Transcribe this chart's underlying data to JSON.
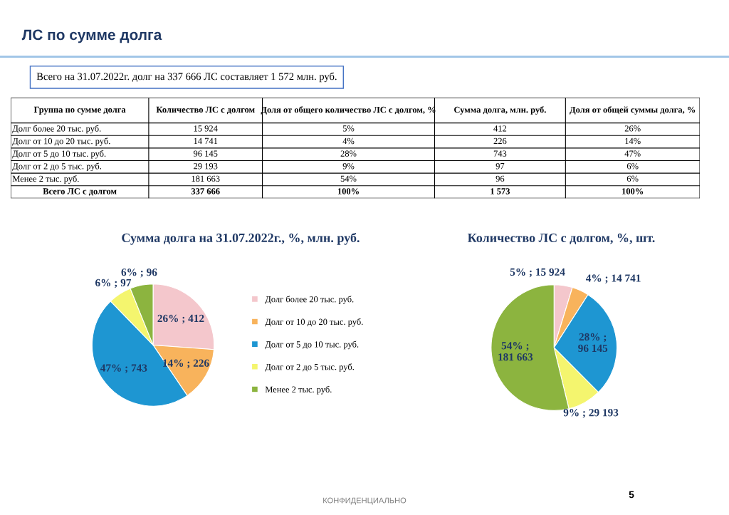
{
  "chart_data": [
    {
      "type": "other",
      "title": "ЛС по сумме долга",
      "subtitle": "Всего на 31.07.2022г. долг на 337 666 ЛС составляет 1 572 млн. руб.",
      "categories": [
        "Группа по сумме долга",
        "Количество ЛС с долгом",
        "Доля от общего количество ЛС с долгом, %",
        "Сумма долга, млн. руб.",
        "Доля от общей суммы долга, %"
      ],
      "cell_labels": [
        [
          "Долг более 20 тыс. руб.",
          "15 924",
          "5%",
          "412",
          "26%"
        ],
        [
          "Долг от 10 до 20 тыс. руб.",
          "14 741",
          "4%",
          "226",
          "14%"
        ],
        [
          "Долг от 5 до 10 тыс. руб.",
          "96 145",
          "28%",
          "743",
          "47%"
        ],
        [
          "Долг от 2 до 5 тыс. руб.",
          "29 193",
          "9%",
          "97",
          "6%"
        ],
        [
          "Менее 2 тыс. руб.",
          "181 663",
          "54%",
          "96",
          "6%"
        ],
        [
          "Всего ЛС с долгом",
          "337 666",
          "100%",
          "1 573",
          "100%"
        ]
      ],
      "annotations": [
        "КОНФИДЕНЦИАЛЬНО",
        "5"
      ]
    },
    {
      "type": "pie",
      "title": "Сумма долга на 31.07.2022г., %, млн. руб.",
      "categories": [
        "Долг более 20 тыс. руб.",
        "Долг от 10 до 20 тыс. руб.",
        "Долг от 5 до 10 тыс. руб.",
        "Долг от 2 до 5 тыс. руб.",
        "Менее 2 тыс. руб."
      ],
      "values": [
        412,
        226,
        743,
        97,
        96
      ],
      "colors": [
        "#f4c7cc",
        "#f8b35c",
        "#1e96d2",
        "#f4f56e",
        "#8cb43f"
      ],
      "value_labels": [
        "26% ; 412",
        "14% ; 226",
        "47% ; 743",
        "6% ; 97",
        "6% ; 96"
      ],
      "legend": "right"
    },
    {
      "type": "pie",
      "title": "Количество ЛС с долгом, %, шт.",
      "categories": [
        null,
        null,
        null,
        null,
        null
      ],
      "values": [
        15924,
        14741,
        96145,
        29193,
        181663
      ],
      "colors": [
        "#f4c7cc",
        "#f8b35c",
        "#1e96d2",
        "#f4f56e",
        "#8cb43f"
      ],
      "value_labels": [
        "5% ; 15 924",
        "4% ; 14 741",
        "28% ; 96 145",
        "9% ; 29 193",
        "54% ; 181 663"
      ]
    }
  ]
}
